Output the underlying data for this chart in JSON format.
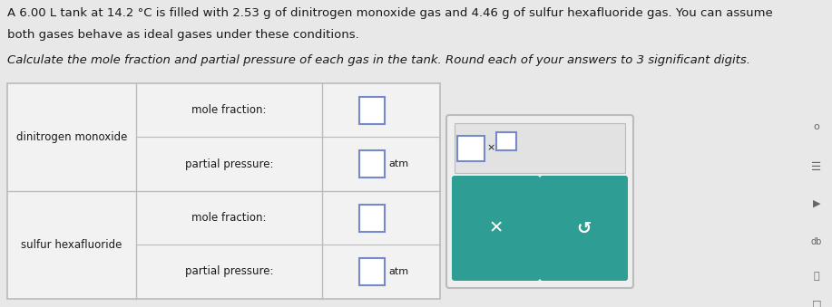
{
  "bg_color": "#e8e8e8",
  "text_color": "#1a1a1a",
  "paragraph1": "A 6.00 L tank at 14.2 °C is filled with 2.53 g of dinitrogen monoxide gas and 4.46 g of sulfur hexafluoride gas. You can assume",
  "paragraph1b": "both gases behave as ideal gases under these conditions.",
  "paragraph2": "Calculate the mole fraction and partial pressure of each gas in the tank. Round each of your answers to 3 significant digits.",
  "row1_label": "dinitrogen monoxide",
  "row2_label": "sulfur hexafluoride",
  "mole_fraction_label": "mole fraction:",
  "partial_pressure_label": "partial pressure:",
  "atm_label": "atm",
  "table_bg": "#f2f2f2",
  "table_border": "#bbbbbb",
  "input_box_color": "#ffffff",
  "input_box_border": "#7788cc",
  "teal_color": "#2e9d94",
  "popup_bg": "#eeeeee",
  "popup_border": "#bbbbbb",
  "x_symbol": "✕",
  "undo_symbol": "↺"
}
